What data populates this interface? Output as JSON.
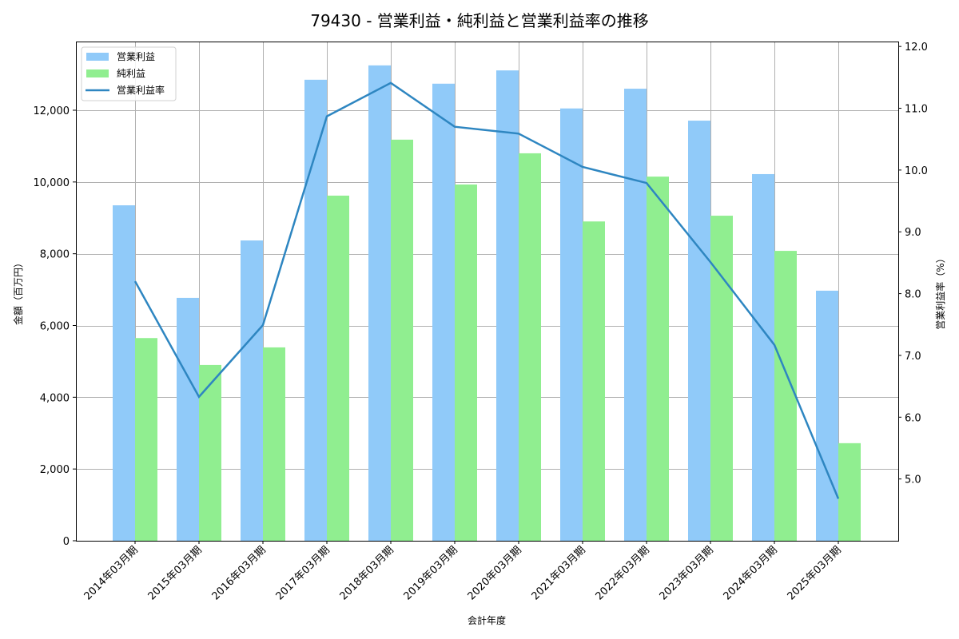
{
  "title": "79430 - 営業利益・純利益と営業利益率の推移",
  "chart_data": {
    "type": "bar",
    "title": "79430 - 営業利益・純利益と営業利益率の推移",
    "xlabel": "会計年度",
    "ylabel": "金額（百万円）",
    "y2label": "営業利益率（%）",
    "categories": [
      "2014年03月期",
      "2015年03月期",
      "2016年03月期",
      "2017年03月期",
      "2018年03月期",
      "2019年03月期",
      "2020年03月期",
      "2021年03月期",
      "2022年03月期",
      "2023年03月期",
      "2024年03月期",
      "2025年03月期"
    ],
    "series": [
      {
        "name": "営業利益",
        "type": "bar",
        "axis": "left",
        "color": "#90caf9",
        "values": [
          9350,
          6770,
          8370,
          12850,
          13250,
          12740,
          13110,
          12050,
          12600,
          11710,
          10220,
          6970
        ]
      },
      {
        "name": "純利益",
        "type": "bar",
        "axis": "left",
        "color": "#90ee90",
        "values": [
          5650,
          4900,
          5390,
          9620,
          11180,
          9930,
          10800,
          8900,
          10150,
          9060,
          8080,
          2720
        ]
      },
      {
        "name": "営業利益率",
        "type": "line",
        "axis": "right",
        "color": "#2e86c1",
        "values": [
          8.2,
          6.33,
          7.49,
          10.87,
          11.41,
          10.7,
          10.59,
          10.05,
          9.79,
          8.51,
          7.17,
          4.68
        ]
      }
    ],
    "ylim": [
      0,
      13915
    ],
    "y2lim": [
      4.0,
      12.08
    ],
    "yticks": [
      0,
      2000,
      4000,
      6000,
      8000,
      10000,
      12000
    ],
    "ytick_labels": [
      "0",
      "2,000",
      "4,000",
      "6,000",
      "8,000",
      "10,000",
      "12,000"
    ],
    "y2ticks": [
      5.0,
      6.0,
      7.0,
      8.0,
      9.0,
      10.0,
      11.0,
      12.0
    ],
    "y2tick_labels": [
      "5.0",
      "6.0",
      "7.0",
      "8.0",
      "9.0",
      "10.0",
      "11.0",
      "12.0"
    ],
    "grid": true,
    "legend_position": "upper left"
  }
}
